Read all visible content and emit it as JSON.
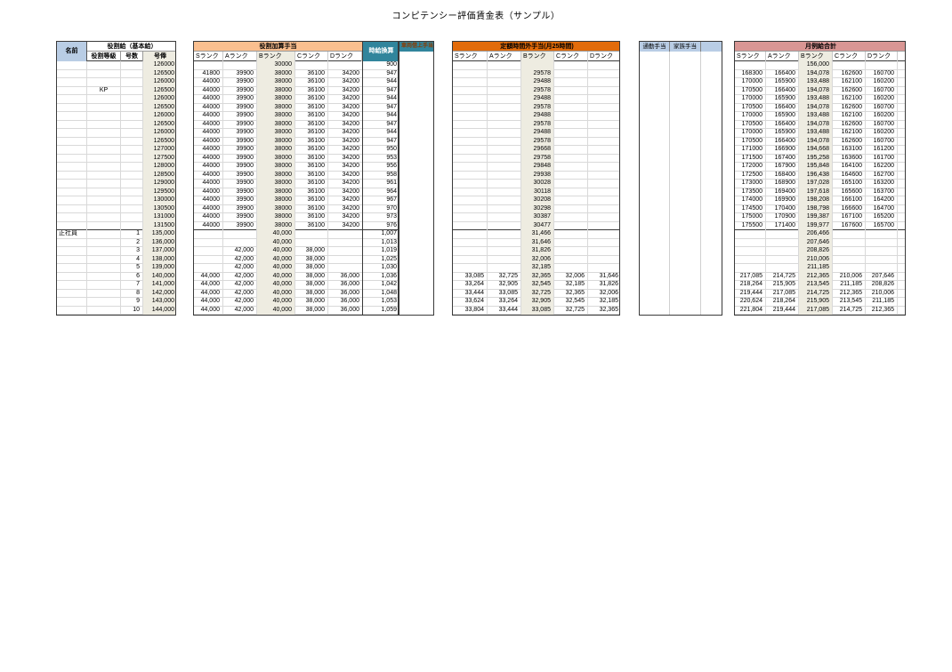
{
  "title": "コンピテンシー評価賃金表（サンプル）",
  "colors": {
    "header_blue": "#B9CDE5",
    "orange_light": "#FABF8F",
    "orange_dark": "#E26B0A",
    "teal": "#31859C",
    "pink": "#D99694",
    "beige": "#EEECE1",
    "vehicle_text": "#8B3A00"
  },
  "headers": {
    "name": "名前",
    "base_pay_group": "役割給（基本給）",
    "grade": "役割等級",
    "step": "号数",
    "salary": "号俸",
    "kasan_group": "役割加算手当",
    "hourly": "時給換算",
    "vehicle": "車両借上手当",
    "overtime_group": "定額時間外手当(月25時間)",
    "commute": "通勤手当",
    "family": "家族手当",
    "total_group": "月例給合計",
    "ranks": [
      "Sランク",
      "Aランク",
      "Bランク",
      "Cランク",
      "Dランク"
    ]
  },
  "upper_rows": [
    {
      "n": "",
      "g": "",
      "s": "",
      "b": "126000",
      "k": [
        "",
        "",
        "30000",
        "",
        ""
      ],
      "h": "900",
      "o": [
        "",
        "",
        "",
        "",
        ""
      ],
      "m": [
        "",
        "",
        "156,000",
        "",
        ""
      ]
    },
    {
      "n": "",
      "g": "",
      "s": "",
      "b": "126500",
      "k": [
        "41800",
        "39900",
        "38000",
        "36100",
        "34200"
      ],
      "h": "947",
      "o": [
        "",
        "",
        "29578",
        "",
        ""
      ],
      "m": [
        "168300",
        "166400",
        "194,078",
        "162600",
        "160700"
      ]
    },
    {
      "n": "",
      "g": "",
      "s": "",
      "b": "126000",
      "k": [
        "44000",
        "39900",
        "38000",
        "36100",
        "34200"
      ],
      "h": "944",
      "o": [
        "",
        "",
        "29488",
        "",
        ""
      ],
      "m": [
        "170000",
        "165900",
        "193,488",
        "162100",
        "160200"
      ]
    },
    {
      "n": "",
      "g": "KP",
      "s": "",
      "b": "126500",
      "k": [
        "44000",
        "39900",
        "38000",
        "36100",
        "34200"
      ],
      "h": "947",
      "o": [
        "",
        "",
        "29578",
        "",
        ""
      ],
      "m": [
        "170500",
        "166400",
        "194,078",
        "162600",
        "160700"
      ]
    },
    {
      "n": "",
      "g": "",
      "s": "",
      "b": "126000",
      "k": [
        "44000",
        "39900",
        "38000",
        "36100",
        "34200"
      ],
      "h": "944",
      "o": [
        "",
        "",
        "29488",
        "",
        ""
      ],
      "m": [
        "170000",
        "165900",
        "193,488",
        "162100",
        "160200"
      ]
    },
    {
      "n": "",
      "g": "",
      "s": "",
      "b": "126500",
      "k": [
        "44000",
        "39900",
        "38000",
        "36100",
        "34200"
      ],
      "h": "947",
      "o": [
        "",
        "",
        "29578",
        "",
        ""
      ],
      "m": [
        "170500",
        "166400",
        "194,078",
        "162600",
        "160700"
      ]
    },
    {
      "n": "",
      "g": "",
      "s": "",
      "b": "126000",
      "k": [
        "44000",
        "39900",
        "38000",
        "36100",
        "34200"
      ],
      "h": "944",
      "o": [
        "",
        "",
        "29488",
        "",
        ""
      ],
      "m": [
        "170000",
        "165900",
        "193,488",
        "162100",
        "160200"
      ]
    },
    {
      "n": "",
      "g": "",
      "s": "",
      "b": "126500",
      "k": [
        "44000",
        "39900",
        "38000",
        "36100",
        "34200"
      ],
      "h": "947",
      "o": [
        "",
        "",
        "29578",
        "",
        ""
      ],
      "m": [
        "170500",
        "166400",
        "194,078",
        "162600",
        "160700"
      ]
    },
    {
      "n": "",
      "g": "",
      "s": "",
      "b": "126000",
      "k": [
        "44000",
        "39900",
        "38000",
        "36100",
        "34200"
      ],
      "h": "944",
      "o": [
        "",
        "",
        "29488",
        "",
        ""
      ],
      "m": [
        "170000",
        "165900",
        "193,488",
        "162100",
        "160200"
      ]
    },
    {
      "n": "",
      "g": "",
      "s": "",
      "b": "126500",
      "k": [
        "44000",
        "39900",
        "38000",
        "36100",
        "34200"
      ],
      "h": "947",
      "o": [
        "",
        "",
        "29578",
        "",
        ""
      ],
      "m": [
        "170500",
        "166400",
        "194,078",
        "162600",
        "160700"
      ]
    },
    {
      "n": "",
      "g": "",
      "s": "",
      "b": "127000",
      "k": [
        "44000",
        "39900",
        "38000",
        "36100",
        "34200"
      ],
      "h": "950",
      "o": [
        "",
        "",
        "29668",
        "",
        ""
      ],
      "m": [
        "171000",
        "166900",
        "194,668",
        "163100",
        "161200"
      ]
    },
    {
      "n": "",
      "g": "",
      "s": "",
      "b": "127500",
      "k": [
        "44000",
        "39900",
        "38000",
        "36100",
        "34200"
      ],
      "h": "953",
      "o": [
        "",
        "",
        "29758",
        "",
        ""
      ],
      "m": [
        "171500",
        "167400",
        "195,258",
        "163600",
        "161700"
      ]
    },
    {
      "n": "",
      "g": "",
      "s": "",
      "b": "128000",
      "k": [
        "44000",
        "39900",
        "38000",
        "36100",
        "34200"
      ],
      "h": "956",
      "o": [
        "",
        "",
        "29848",
        "",
        ""
      ],
      "m": [
        "172000",
        "167900",
        "195,848",
        "164100",
        "162200"
      ]
    },
    {
      "n": "",
      "g": "",
      "s": "",
      "b": "128500",
      "k": [
        "44000",
        "39900",
        "38000",
        "36100",
        "34200"
      ],
      "h": "958",
      "o": [
        "",
        "",
        "29938",
        "",
        ""
      ],
      "m": [
        "172500",
        "168400",
        "196,438",
        "164600",
        "162700"
      ]
    },
    {
      "n": "",
      "g": "",
      "s": "",
      "b": "129000",
      "k": [
        "44000",
        "39900",
        "38000",
        "36100",
        "34200"
      ],
      "h": "961",
      "o": [
        "",
        "",
        "30028",
        "",
        ""
      ],
      "m": [
        "173000",
        "168900",
        "197,028",
        "165100",
        "163200"
      ]
    },
    {
      "n": "",
      "g": "",
      "s": "",
      "b": "129500",
      "k": [
        "44000",
        "39900",
        "38000",
        "36100",
        "34200"
      ],
      "h": "964",
      "o": [
        "",
        "",
        "30118",
        "",
        ""
      ],
      "m": [
        "173500",
        "169400",
        "197,618",
        "165600",
        "163700"
      ]
    },
    {
      "n": "",
      "g": "",
      "s": "",
      "b": "130000",
      "k": [
        "44000",
        "39900",
        "38000",
        "36100",
        "34200"
      ],
      "h": "967",
      "o": [
        "",
        "",
        "30208",
        "",
        ""
      ],
      "m": [
        "174000",
        "169900",
        "198,208",
        "166100",
        "164200"
      ]
    },
    {
      "n": "",
      "g": "",
      "s": "",
      "b": "130500",
      "k": [
        "44000",
        "39900",
        "38000",
        "36100",
        "34200"
      ],
      "h": "970",
      "o": [
        "",
        "",
        "30298",
        "",
        ""
      ],
      "m": [
        "174500",
        "170400",
        "198,798",
        "166600",
        "164700"
      ]
    },
    {
      "n": "",
      "g": "",
      "s": "",
      "b": "131000",
      "k": [
        "44000",
        "39900",
        "38000",
        "36100",
        "34200"
      ],
      "h": "973",
      "o": [
        "",
        "",
        "30387",
        "",
        ""
      ],
      "m": [
        "175000",
        "170900",
        "199,387",
        "167100",
        "165200"
      ]
    },
    {
      "n": "",
      "g": "",
      "s": "",
      "b": "131500",
      "k": [
        "44000",
        "39900",
        "38000",
        "36100",
        "34200"
      ],
      "h": "976",
      "o": [
        "",
        "",
        "30477",
        "",
        ""
      ],
      "m": [
        "175500",
        "171400",
        "199,977",
        "167600",
        "165700"
      ]
    }
  ],
  "lower_rows": [
    {
      "n": "正社員",
      "g": "",
      "s": "1",
      "b": "135,000",
      "k": [
        "",
        "",
        "40,000",
        "",
        ""
      ],
      "h": "1,007",
      "o": [
        "",
        "",
        "31,466",
        "",
        ""
      ],
      "m": [
        "",
        "",
        "206,466",
        "",
        ""
      ]
    },
    {
      "n": "",
      "g": "",
      "s": "2",
      "b": "136,000",
      "k": [
        "",
        "",
        "40,000",
        "",
        ""
      ],
      "h": "1,013",
      "o": [
        "",
        "",
        "31,646",
        "",
        ""
      ],
      "m": [
        "",
        "",
        "207,646",
        "",
        ""
      ]
    },
    {
      "n": "",
      "g": "",
      "s": "3",
      "b": "137,000",
      "k": [
        "",
        "42,000",
        "40,000",
        "38,000",
        ""
      ],
      "h": "1,019",
      "o": [
        "",
        "",
        "31,826",
        "",
        ""
      ],
      "m": [
        "",
        "",
        "208,826",
        "",
        ""
      ]
    },
    {
      "n": "",
      "g": "",
      "s": "4",
      "b": "138,000",
      "k": [
        "",
        "42,000",
        "40,000",
        "38,000",
        ""
      ],
      "h": "1,025",
      "o": [
        "",
        "",
        "32,006",
        "",
        ""
      ],
      "m": [
        "",
        "",
        "210,006",
        "",
        ""
      ]
    },
    {
      "n": "",
      "g": "",
      "s": "5",
      "b": "139,000",
      "k": [
        "",
        "42,000",
        "40,000",
        "38,000",
        ""
      ],
      "h": "1,030",
      "o": [
        "",
        "",
        "32,185",
        "",
        ""
      ],
      "m": [
        "",
        "",
        "211,185",
        "",
        ""
      ]
    },
    {
      "n": "",
      "g": "",
      "s": "6",
      "b": "140,000",
      "k": [
        "44,000",
        "42,000",
        "40,000",
        "38,000",
        "36,000"
      ],
      "h": "1,036",
      "o": [
        "33,085",
        "32,725",
        "32,365",
        "32,006",
        "31,646"
      ],
      "m": [
        "217,085",
        "214,725",
        "212,365",
        "210,006",
        "207,646"
      ]
    },
    {
      "n": "",
      "g": "",
      "s": "7",
      "b": "141,000",
      "k": [
        "44,000",
        "42,000",
        "40,000",
        "38,000",
        "36,000"
      ],
      "h": "1,042",
      "o": [
        "33,264",
        "32,905",
        "32,545",
        "32,185",
        "31,826"
      ],
      "m": [
        "218,264",
        "215,905",
        "213,545",
        "211,185",
        "208,826"
      ]
    },
    {
      "n": "",
      "g": "",
      "s": "8",
      "b": "142,000",
      "k": [
        "44,000",
        "42,000",
        "40,000",
        "38,000",
        "36,000"
      ],
      "h": "1,048",
      "o": [
        "33,444",
        "33,085",
        "32,725",
        "32,365",
        "32,006"
      ],
      "m": [
        "219,444",
        "217,085",
        "214,725",
        "212,365",
        "210,006"
      ]
    },
    {
      "n": "",
      "g": "",
      "s": "9",
      "b": "143,000",
      "k": [
        "44,000",
        "42,000",
        "40,000",
        "38,000",
        "36,000"
      ],
      "h": "1,053",
      "o": [
        "33,624",
        "33,264",
        "32,905",
        "32,545",
        "32,185"
      ],
      "m": [
        "220,624",
        "218,264",
        "215,905",
        "213,545",
        "211,185"
      ]
    },
    {
      "n": "",
      "g": "",
      "s": "10",
      "b": "144,000",
      "k": [
        "44,000",
        "42,000",
        "40,000",
        "38,000",
        "36,000"
      ],
      "h": "1,059",
      "o": [
        "33,804",
        "33,444",
        "33,085",
        "32,725",
        "32,365"
      ],
      "m": [
        "221,804",
        "219,444",
        "217,085",
        "214,725",
        "212,365"
      ]
    }
  ]
}
